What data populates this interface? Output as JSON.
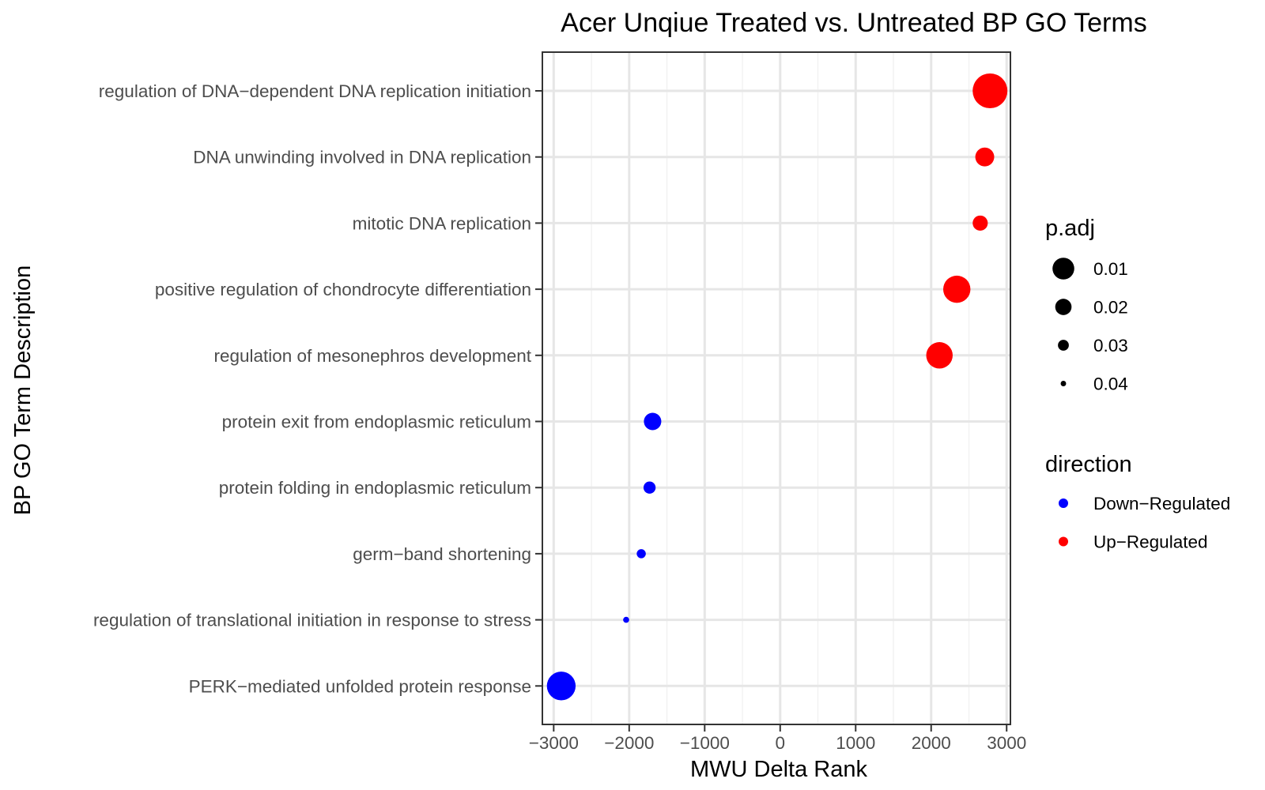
{
  "chart_data": {
    "type": "scatter",
    "title": "Acer Unqiue Treated vs. Untreated BP GO Terms",
    "xlabel": "MWU Delta Rank",
    "ylabel": "BP GO Term Description",
    "xlim": [
      -3150,
      3050
    ],
    "x_ticks": [
      -3000,
      -2000,
      -1000,
      0,
      1000,
      2000,
      3000
    ],
    "x_tick_labels": [
      "−3000",
      "−2000",
      "−1000",
      "0",
      "1000",
      "2000",
      "3000"
    ],
    "grid": true,
    "categories": [
      "regulation of DNA−dependent DNA replication initiation",
      "DNA unwinding involved in DNA replication",
      "mitotic DNA replication",
      "positive regulation of chondrocyte differentiation",
      "regulation of mesonephros development",
      "protein exit from endoplasmic reticulum",
      "protein folding in endoplasmic reticulum",
      "germ−band shortening",
      "regulation of translational initiation in response to stress",
      "PERK−mediated unfolded protein response"
    ],
    "points": [
      {
        "term": "regulation of DNA−dependent DNA replication initiation",
        "x": 2780,
        "p_adj": 0.004,
        "direction": "Up−Regulated"
      },
      {
        "term": "DNA unwinding involved in DNA replication",
        "x": 2710,
        "p_adj": 0.025,
        "direction": "Up−Regulated"
      },
      {
        "term": "mitotic DNA replication",
        "x": 2650,
        "p_adj": 0.03,
        "direction": "Up−Regulated"
      },
      {
        "term": "positive regulation of chondrocyte differentiation",
        "x": 2340,
        "p_adj": 0.014,
        "direction": "Up−Regulated"
      },
      {
        "term": "regulation of mesonephros development",
        "x": 2110,
        "p_adj": 0.015,
        "direction": "Up−Regulated"
      },
      {
        "term": "protein exit from endoplasmic reticulum",
        "x": -1690,
        "p_adj": 0.027,
        "direction": "Down−Regulated"
      },
      {
        "term": "protein folding in endoplasmic reticulum",
        "x": -1730,
        "p_adj": 0.034,
        "direction": "Down−Regulated"
      },
      {
        "term": "germ−band shortening",
        "x": -1840,
        "p_adj": 0.038,
        "direction": "Down−Regulated"
      },
      {
        "term": "regulation of translational initiation in response to stress",
        "x": -2040,
        "p_adj": 0.042,
        "direction": "Down−Regulated"
      },
      {
        "term": "PERK−mediated unfolded protein response",
        "x": -2900,
        "p_adj": 0.012,
        "direction": "Down−Regulated"
      }
    ],
    "size_legend": {
      "title": "p.adj",
      "entries": [
        {
          "label": "0.01",
          "value": 0.01
        },
        {
          "label": "0.02",
          "value": 0.02
        },
        {
          "label": "0.03",
          "value": 0.03
        },
        {
          "label": "0.04",
          "value": 0.04
        }
      ]
    },
    "color_legend": {
      "title": "direction",
      "entries": [
        {
          "label": "Down−Regulated",
          "color": "#0000ff"
        },
        {
          "label": "Up−Regulated",
          "color": "#ff0000"
        }
      ]
    },
    "legend_position": "right"
  }
}
